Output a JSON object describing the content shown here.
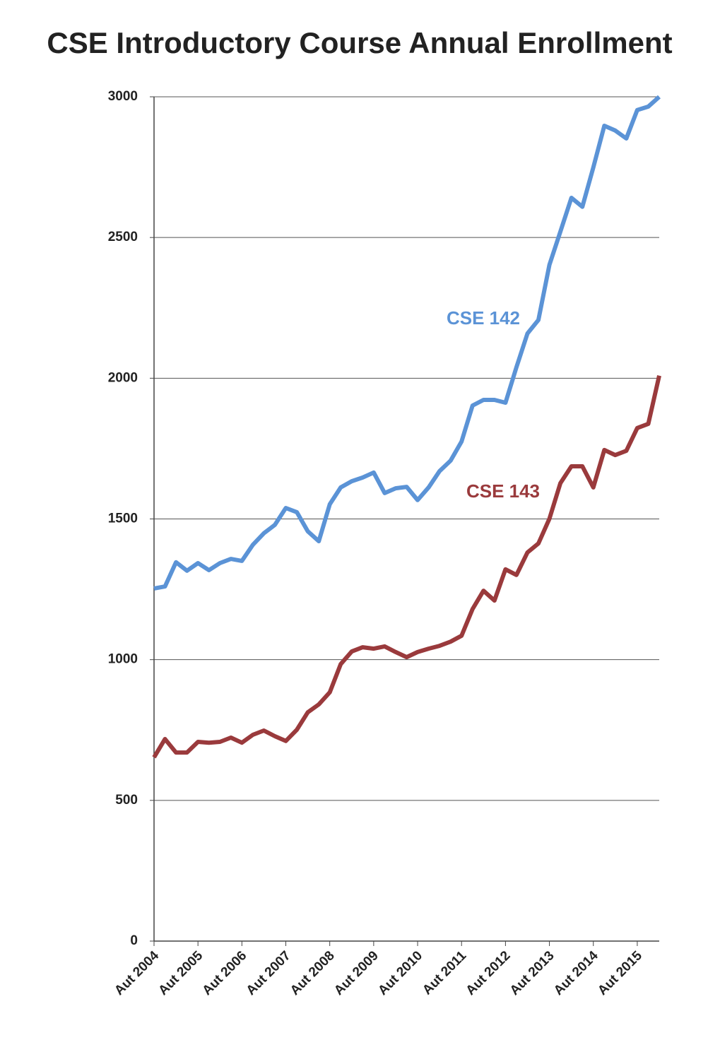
{
  "chart_data": {
    "type": "line",
    "title": "CSE Introductory Course Annual Enrollment",
    "categories": [
      "Aut 2004",
      null,
      null,
      null,
      "Aut 2005",
      null,
      null,
      null,
      "Aut 2006",
      null,
      null,
      null,
      "Aut 2007",
      null,
      null,
      null,
      "Aut 2008",
      null,
      null,
      null,
      "Aut 2009",
      null,
      null,
      null,
      "Aut 2010",
      null,
      null,
      null,
      "Aut 2011",
      null,
      null,
      null,
      "Aut 2012",
      null,
      null,
      null,
      "Aut 2013",
      null,
      null,
      null,
      "Aut 2014",
      null,
      null,
      null,
      "Aut 2015",
      null,
      null
    ],
    "series": [
      {
        "name": "CSE 142",
        "color": "#5b93d6",
        "values": [
          1253,
          1260,
          1346,
          1316,
          1343,
          1318,
          1343,
          1358,
          1351,
          1408,
          1449,
          1479,
          1539,
          1524,
          1456,
          1421,
          1552,
          1612,
          1634,
          1647,
          1665,
          1592,
          1609,
          1614,
          1567,
          1612,
          1670,
          1707,
          1775,
          1903,
          1923,
          1923,
          1913,
          2039,
          2159,
          2207,
          2403,
          2521,
          2641,
          2609,
          2749,
          2897,
          2880,
          2852,
          2953,
          2965,
          3000
        ]
      },
      {
        "name": "CSE 143",
        "color": "#9a3a3c",
        "values": [
          653,
          718,
          670,
          670,
          708,
          705,
          708,
          723,
          705,
          733,
          748,
          728,
          711,
          751,
          813,
          841,
          884,
          984,
          1029,
          1044,
          1039,
          1047,
          1027,
          1009,
          1027,
          1039,
          1049,
          1064,
          1085,
          1180,
          1245,
          1210,
          1321,
          1301,
          1381,
          1413,
          1501,
          1627,
          1687,
          1687,
          1612,
          1745,
          1727,
          1742,
          1823,
          1838,
          2009
        ]
      }
    ],
    "ylim": [
      0,
      3000
    ],
    "yticks": [
      0,
      500,
      1000,
      1500,
      2000,
      2500,
      3000
    ],
    "grid": true
  }
}
